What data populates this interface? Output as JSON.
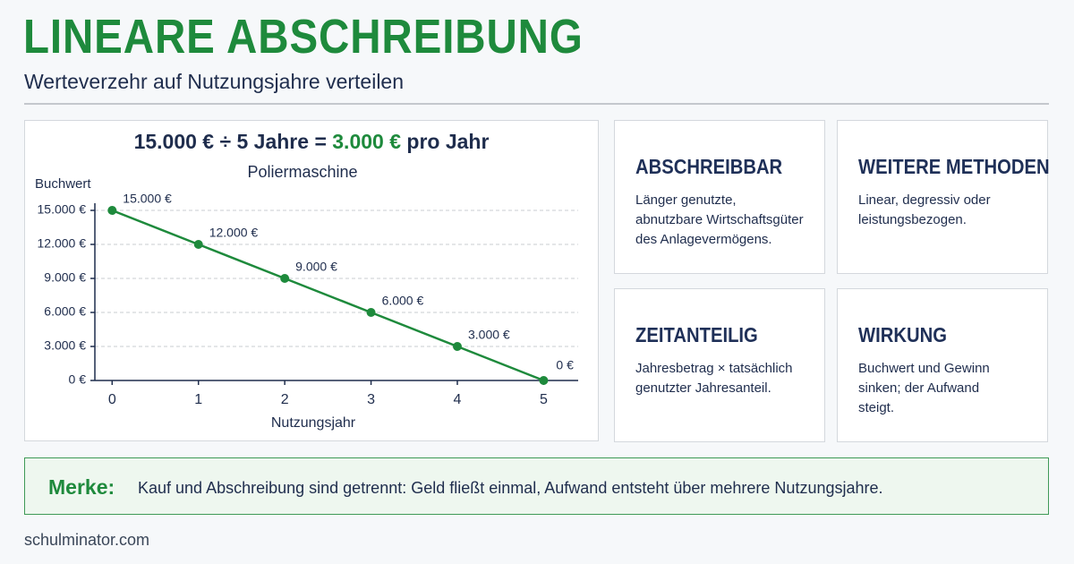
{
  "header": {
    "title": "LINEARE ABSCHREIBUNG",
    "subtitle": "Werteverzehr auf Nutzungsjahre verteilen"
  },
  "formula": {
    "left": "15.000 € ÷ 5 Jahre =",
    "result": "3.000 €",
    "right": "pro Jahr"
  },
  "chart_data": {
    "type": "line",
    "title": "Poliermaschine",
    "y_label": "Buchwert",
    "x_label": "Nutzungsjahr",
    "x": [
      0,
      1,
      2,
      3,
      4,
      5
    ],
    "values": [
      15000,
      12000,
      9000,
      6000,
      3000,
      0
    ],
    "value_labels": [
      "15.000 €",
      "12.000 €",
      "9.000 €",
      "6.000 €",
      "3.000 €",
      "0 €"
    ],
    "color": "#1e8a3c",
    "xlim": [
      -0.2,
      5.4
    ],
    "xticks": [
      0,
      1,
      2,
      3,
      4,
      5
    ],
    "ylim": [
      0,
      15000
    ],
    "yticks": [
      {
        "value": 0,
        "label": "0 €"
      },
      {
        "value": 3000,
        "label": "3.000 €"
      },
      {
        "value": 6000,
        "label": "6.000 €"
      },
      {
        "value": 9000,
        "label": "9.000 €"
      },
      {
        "value": 12000,
        "label": "12.000 €"
      },
      {
        "value": 15000,
        "label": "15.000 €"
      }
    ],
    "grid": true
  },
  "cards": [
    {
      "title": "ABSCHREIBBAR",
      "lines": [
        "Länger genutzte,",
        "abnutzbare Wirtschaftsgüter",
        "des Anlagevermögens."
      ]
    },
    {
      "title": "WEITERE METHODEN",
      "lines": [
        "Linear, degressiv oder",
        "leistungsbezogen."
      ]
    },
    {
      "title": "ZEITANTEILIG",
      "lines": [
        "Jahresbetrag × tatsächlich",
        "genutzter Jahresanteil."
      ]
    },
    {
      "title": "WIRKUNG",
      "lines": [
        "Buchwert und Gewinn",
        "sinken; der Aufwand",
        "steigt."
      ]
    }
  ],
  "merke": {
    "label": "Merke:",
    "text": "Kauf und Abschreibung sind getrennt: Geld fließt einmal, Aufwand entsteht über mehrere Nutzungsjahre."
  },
  "footer": {
    "site": "schulminator.com"
  }
}
